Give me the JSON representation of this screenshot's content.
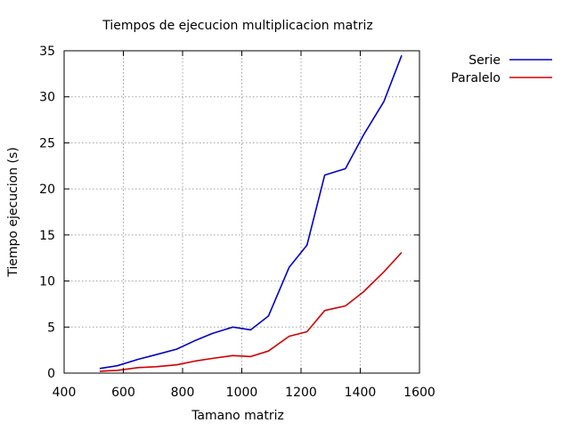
{
  "chart_data": {
    "type": "line",
    "title": "Tiempos de ejecucion multiplicacion matriz",
    "xlabel": "Tamano matriz",
    "ylabel": "Tiempo ejecucion (s)",
    "xlim": [
      400,
      1600
    ],
    "ylim": [
      0,
      35
    ],
    "xticks": [
      400,
      600,
      800,
      1000,
      1200,
      1400,
      1600
    ],
    "yticks": [
      0,
      5,
      10,
      15,
      20,
      25,
      30,
      35
    ],
    "grid": true,
    "legend_position": "top-right-outside",
    "x": [
      520,
      580,
      650,
      710,
      780,
      840,
      900,
      970,
      1030,
      1090,
      1160,
      1220,
      1280,
      1350,
      1410,
      1480,
      1540
    ],
    "series": [
      {
        "name": "Serie",
        "color": "#0000c8",
        "values": [
          0.5,
          0.8,
          1.5,
          2.0,
          2.6,
          3.5,
          4.3,
          5.0,
          4.7,
          6.2,
          11.5,
          13.9,
          21.5,
          22.2,
          25.8,
          29.5,
          34.5
        ]
      },
      {
        "name": "Paralelo",
        "color": "#d00000",
        "values": [
          0.2,
          0.3,
          0.6,
          0.7,
          0.9,
          1.3,
          1.6,
          1.9,
          1.8,
          2.4,
          4.0,
          4.5,
          6.8,
          7.3,
          8.8,
          11.0,
          13.1
        ]
      }
    ]
  }
}
